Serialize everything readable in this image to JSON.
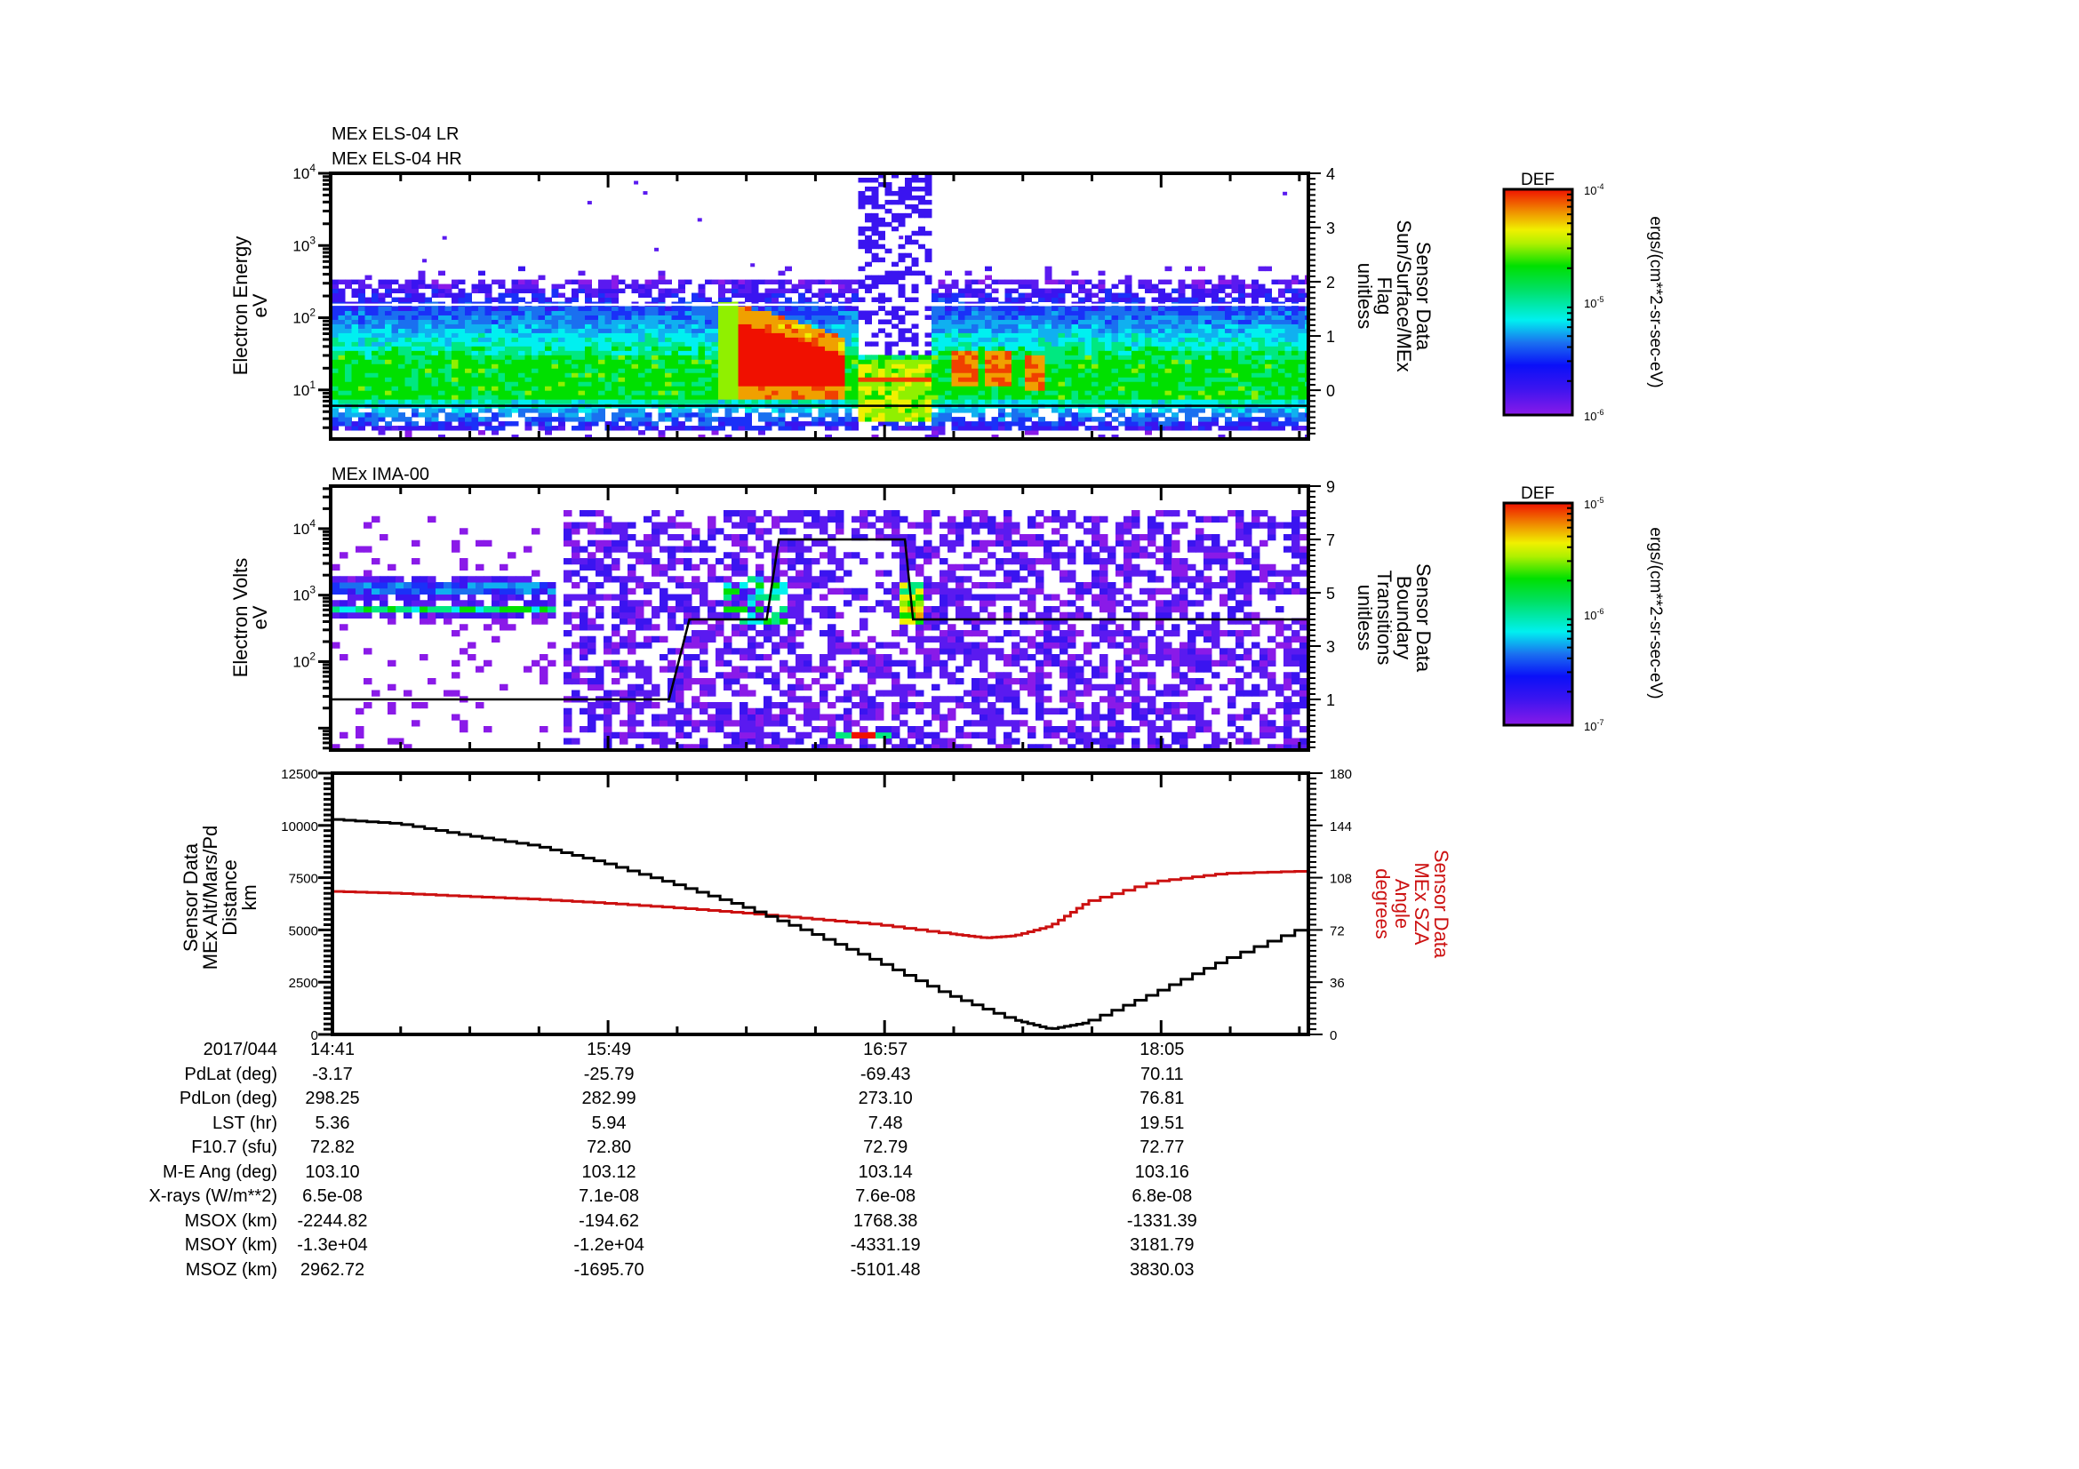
{
  "chart_data": [
    {
      "id": "els",
      "type": "heatmap",
      "titles": [
        "MEx ELS-04 LR",
        "MEx ELS-04 HR"
      ],
      "ylabel": [
        "Electron Energy",
        "eV"
      ],
      "yscale": "log",
      "yticks": [
        {
          "exp": 1,
          "label": "10",
          "sup": "1"
        },
        {
          "exp": 2,
          "label": "10",
          "sup": "2"
        },
        {
          "exp": 3,
          "label": "10",
          "sup": "3"
        },
        {
          "exp": 4,
          "label": "10",
          "sup": "4"
        }
      ],
      "ylim_log10": [
        0.32,
        4.0
      ],
      "y2label": [
        "Sensor Data",
        "Sun/Surface/MEx",
        "Flag",
        "unitless"
      ],
      "y2ticks": [
        0,
        1,
        2,
        3,
        4
      ],
      "y2lim": [
        -0.9,
        4
      ],
      "overlay_lines": [
        {
          "color": "#ffffff",
          "log10_energy": 2.18,
          "desc": "upper boundary line"
        },
        {
          "color": "#000000",
          "log10_energy": 0.78,
          "desc": "flag 0 line"
        }
      ],
      "features": {
        "background_band": {
          "log10_min": 0.45,
          "log10_max": 2.55,
          "core_log10": [
            0.85,
            1.45
          ]
        },
        "heated_red_region": {
          "t_start_min": 99,
          "t_end_min": 125,
          "log10_min": 1.05,
          "log10_max": 1.95
        },
        "orange_streak": {
          "t_start_min": 130,
          "t_end_min": 150,
          "log10": 1.15
        },
        "gap_min": [
          129,
          146
        ],
        "patches": [
          {
            "t_min": 155,
            "log10": 1.3
          },
          {
            "t_min": 163,
            "log10": 1.3
          },
          {
            "t_min": 172,
            "log10": 1.25
          }
        ]
      },
      "colorbar": {
        "label": "DEF",
        "ticks": [
          "10-4",
          "10-5",
          "10-6"
        ],
        "tick_exps": [
          -4,
          -5,
          -6
        ],
        "units": "ergs/(cm**2-sr-sec-eV)"
      }
    },
    {
      "id": "ima",
      "type": "heatmap",
      "titles": [
        "MEx IMA-00"
      ],
      "ylabel": [
        "Electron Volts",
        "eV"
      ],
      "yscale": "log",
      "yticks": [
        {
          "exp": 2,
          "label": "10",
          "sup": "2"
        },
        {
          "exp": 3,
          "label": "10",
          "sup": "3"
        },
        {
          "exp": 4,
          "label": "10",
          "sup": "4"
        }
      ],
      "ylim_log10": [
        0.67,
        4.64
      ],
      "y2label": [
        "Sensor Data",
        "Boundary",
        "Transitions",
        "unitless"
      ],
      "y2ticks": [
        1,
        3,
        5,
        7,
        9
      ],
      "y2lim": [
        -0.9,
        9
      ],
      "boundary_line": {
        "color": "#000000",
        "points": [
          [
            0,
            1
          ],
          [
            83,
            1
          ],
          [
            88,
            4
          ],
          [
            107,
            4
          ],
          [
            110,
            7
          ],
          [
            141,
            7
          ],
          [
            143,
            4
          ],
          [
            240,
            4
          ]
        ]
      },
      "features": {
        "sparse_until_min": 55,
        "bands_log10": [
          2.78,
          3.12
        ],
        "dense_start_min": 56,
        "green_streaks_min": [
          95,
          112
        ],
        "red_burst": {
          "t_start_min": 122,
          "t_end_min": 137,
          "log10": 0.9
        },
        "boundary_spike_min": 142
      },
      "colorbar": {
        "label": "DEF",
        "ticks": [
          "10-5",
          "10-6",
          "10-7"
        ],
        "tick_exps": [
          -5,
          -6,
          -7
        ],
        "units": "ergs/(cm**2-sr-sec-eV)"
      }
    },
    {
      "id": "orbit",
      "type": "line",
      "ylabel": [
        "Sensor Data",
        "MEx Alt/Mars/Pd",
        "Distance",
        "km"
      ],
      "ylim": [
        0,
        12500
      ],
      "yticks": [
        0,
        2500,
        5000,
        7500,
        10000,
        12500
      ],
      "y2label": [
        "Sensor Data",
        "MEx SZA",
        "Angle",
        "degrees"
      ],
      "y2lim": [
        0,
        180
      ],
      "y2ticks": [
        0,
        36,
        72,
        108,
        144,
        180
      ],
      "series": [
        {
          "name": "MEx Alt/Mars/Pd Distance (km)",
          "color": "#000000",
          "axis": "left",
          "x_min": [
            0,
            17,
            34,
            51,
            67,
            84,
            101,
            118,
            135,
            152,
            168,
            177,
            186,
            203,
            220,
            240
          ],
          "values": [
            10300,
            10085,
            9520,
            9020,
            8240,
            7245,
            6180,
            4900,
            3480,
            1918,
            710,
            255,
            568,
            1990,
            3550,
            5114
          ]
        },
        {
          "name": "MEx SZA Angle (degrees)",
          "color": "#cc1111",
          "axis": "right",
          "x_min": [
            0,
            17,
            34,
            51,
            67,
            84,
            101,
            118,
            135,
            152,
            161,
            168,
            177,
            186,
            203,
            220,
            240
          ],
          "values": [
            98.6,
            97.2,
            95.1,
            93.1,
            90.6,
            87.5,
            83.9,
            79.8,
            75.7,
            69.5,
            66.5,
            67.9,
            74.7,
            91.0,
            105.3,
            110.9,
            112.5
          ]
        }
      ]
    }
  ],
  "xaxis": {
    "date": "2017/044",
    "start": "14:41",
    "end": "18:41",
    "span_min": 240,
    "major_ticks": [
      {
        "min": 0,
        "label": "14:41"
      },
      {
        "min": 68,
        "label": "15:49"
      },
      {
        "min": 136,
        "label": "16:57"
      },
      {
        "min": 204,
        "label": "18:05"
      }
    ],
    "minor_step_min": 17
  },
  "ephemeris": {
    "rows": [
      {
        "label": "2017/044",
        "values": [
          "14:41",
          "15:49",
          "16:57",
          "18:05"
        ]
      },
      {
        "label": "PdLat (deg)",
        "values": [
          "-3.17",
          "-25.79",
          "-69.43",
          "70.11"
        ]
      },
      {
        "label": "PdLon (deg)",
        "values": [
          "298.25",
          "282.99",
          "273.10",
          "76.81"
        ]
      },
      {
        "label": "LST (hr)",
        "values": [
          "5.36",
          "5.94",
          "7.48",
          "19.51"
        ]
      },
      {
        "label": "F10.7 (sfu)",
        "values": [
          "72.82",
          "72.80",
          "72.79",
          "72.77"
        ]
      },
      {
        "label": "M-E Ang (deg)",
        "values": [
          "103.10",
          "103.12",
          "103.14",
          "103.16"
        ]
      },
      {
        "label": "X-rays (W/m**2)",
        "values": [
          "6.5e-08",
          "7.1e-08",
          "7.6e-08",
          "6.8e-08"
        ]
      },
      {
        "label": "MSOX (km)",
        "values": [
          "-2244.82",
          "-194.62",
          "1768.38",
          "-1331.39"
        ]
      },
      {
        "label": "MSOY (km)",
        "values": [
          "-1.3e+04",
          "-1.2e+04",
          "-4331.19",
          "3181.79"
        ]
      },
      {
        "label": "MSOZ (km)",
        "values": [
          "2962.72",
          "-1695.70",
          "-5101.48",
          "3830.03"
        ]
      }
    ]
  }
}
